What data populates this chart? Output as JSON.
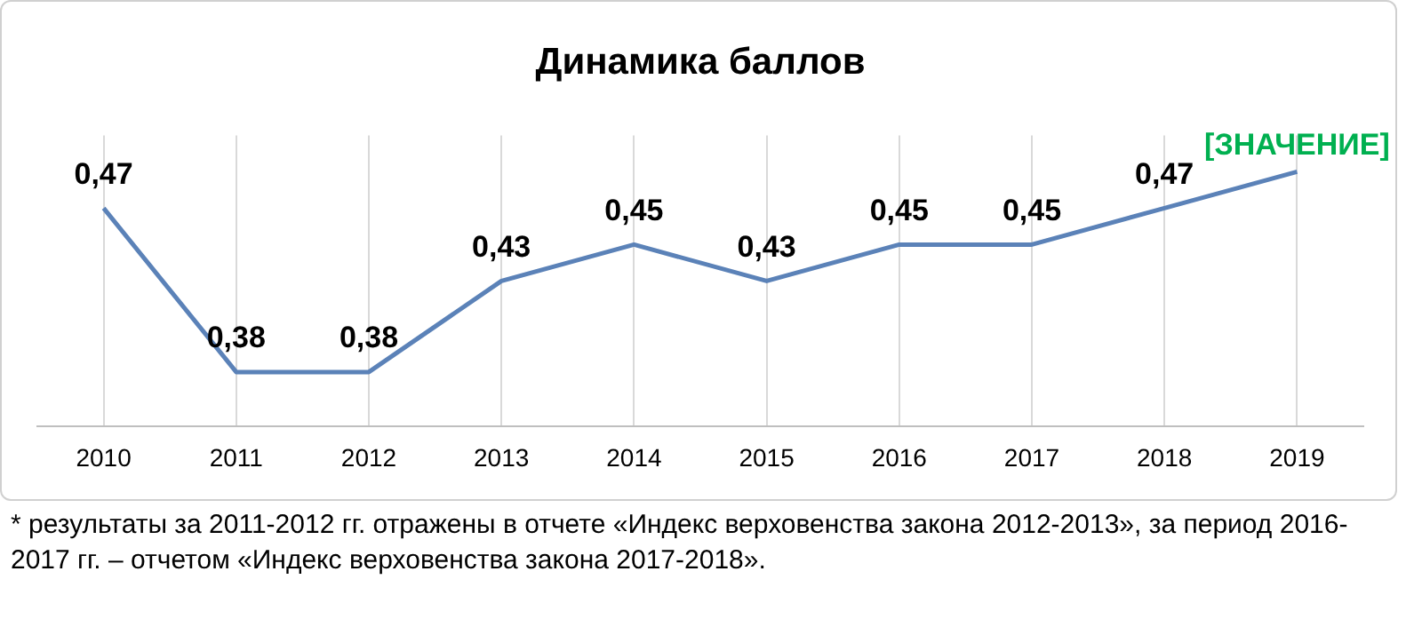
{
  "chart_data": {
    "type": "line",
    "title": "Динамика баллов",
    "categories": [
      "2010",
      "2011",
      "2012",
      "2013",
      "2014",
      "2015",
      "2016",
      "2017",
      "2018",
      "2019"
    ],
    "series": [
      {
        "color": "#5b82b8",
        "values": [
          0.47,
          0.38,
          0.38,
          0.43,
          0.45,
          0.43,
          0.45,
          0.45,
          0.47,
          0.49
        ],
        "value_labels": [
          "0,47",
          "0,38",
          "0,38",
          "0,43",
          "0,45",
          "0,43",
          "0,45",
          "0,45",
          "0,47",
          "[ЗНАЧЕНИЕ]"
        ]
      }
    ],
    "ylim": [
      0.35,
      0.51
    ],
    "grid": "x",
    "legend": false,
    "marker": "none",
    "line_style": "solid",
    "tick_labels": "x",
    "annotations": [
      "* результаты за 2011-2012 гг. отражены в отчете «Индекс верховенства закона 2012-2013», за период 2016-2017 гг. – отчетом «Индекс верховенства закона 2017-2018»."
    ]
  }
}
